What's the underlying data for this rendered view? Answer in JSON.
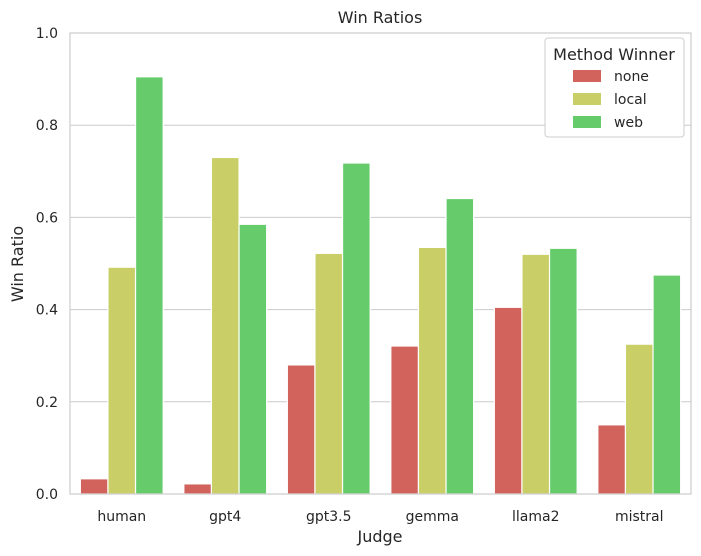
{
  "chart_data": {
    "type": "bar",
    "title": "Win Ratios",
    "xlabel": "Judge",
    "ylabel": "Win Ratio",
    "ylim": [
      0,
      1.0
    ],
    "yticks": [
      "0.0",
      "0.2",
      "0.4",
      "0.6",
      "0.8",
      "1.0"
    ],
    "grid": true,
    "legend": {
      "title": "Method Winner",
      "placement": "top-right"
    },
    "categories": [
      "human",
      "gpt4",
      "gpt3.5",
      "gemma",
      "llama2",
      "mistral"
    ],
    "series": [
      {
        "name": "none",
        "color": "#d1625c",
        "values": [
          0.033,
          0.022,
          0.28,
          0.321,
          0.405,
          0.15
        ]
      },
      {
        "name": "local",
        "color": "#c9cf66",
        "values": [
          0.492,
          0.73,
          0.522,
          0.535,
          0.52,
          0.325
        ]
      },
      {
        "name": "web",
        "color": "#66cc6b",
        "values": [
          0.905,
          0.585,
          0.718,
          0.641,
          0.533,
          0.475
        ]
      }
    ]
  }
}
